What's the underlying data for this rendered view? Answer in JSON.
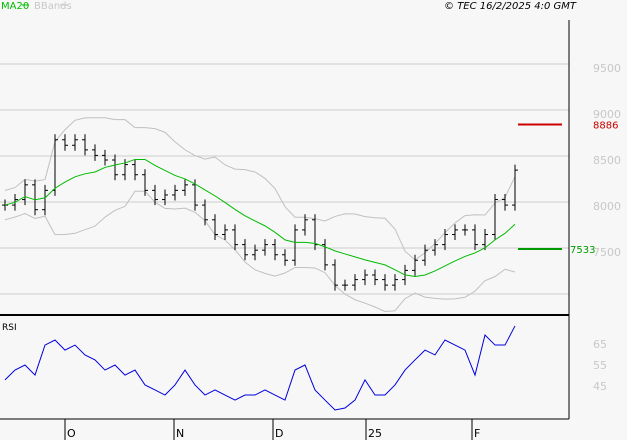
{
  "header": {
    "legend_ma": "MA20",
    "legend_bb": "BBands",
    "copyright": "© TEC 16/2/2025 4:0 GMT"
  },
  "colors": {
    "ma": "#00bb00",
    "bb": "#c0c0c0",
    "price": "#000000",
    "rsi": "#0000dd",
    "resistance": "#cc0000",
    "support": "#009900"
  },
  "levels": {
    "resistance": {
      "value": 8886,
      "label": "8886"
    },
    "support": {
      "value": 7533,
      "label": "7533"
    }
  },
  "chart_data": [
    {
      "type": "line",
      "subtype": "ohlc",
      "ylim": [
        6800,
        10000
      ],
      "y_ticks": [
        "9500",
        "9000",
        "8500",
        "8000",
        "7500"
      ],
      "y_tick_values": [
        9500,
        9000,
        8500,
        8000,
        7500
      ],
      "x_ticks": [
        "O",
        "N",
        "D",
        "25",
        "F"
      ],
      "grid": true,
      "indicators": [
        "MA20",
        "BBands"
      ],
      "closes": [
        8010,
        8070,
        8230,
        7960,
        8170,
        8720,
        8660,
        8720,
        8610,
        8550,
        8500,
        8340,
        8450,
        8340,
        8170,
        8070,
        8120,
        8170,
        8230,
        8010,
        7850,
        7690,
        7740,
        7580,
        7470,
        7520,
        7580,
        7470,
        7410,
        7740,
        7850,
        7580,
        7360,
        7140,
        7140,
        7200,
        7250,
        7200,
        7140,
        7200,
        7300,
        7410,
        7520,
        7580,
        7690,
        7740,
        7740,
        7580,
        7690,
        8070,
        8010,
        8390
      ]
    },
    {
      "type": "line",
      "title": "RSI",
      "ylim": [
        30,
        80
      ],
      "y_ticks": [
        "65",
        "55",
        "45"
      ],
      "y_tick_values": [
        65,
        55,
        45
      ],
      "values": [
        47.9,
        52.6,
        55,
        50.2,
        64.5,
        66.9,
        62.1,
        64.5,
        59.8,
        57.4,
        52.6,
        55,
        50.2,
        52.6,
        45.5,
        43.1,
        40.7,
        45.5,
        52.6,
        45.5,
        40.7,
        43.1,
        40.7,
        38.3,
        40.7,
        40.7,
        43.1,
        40.7,
        38.3,
        52.6,
        55,
        43.1,
        38.3,
        33.6,
        34.5,
        38.3,
        47.9,
        40.7,
        40.7,
        45.5,
        52.6,
        57.4,
        62.1,
        59.8,
        66.9,
        64.5,
        62.1,
        50.2,
        69.3,
        64.5,
        64.5,
        73.6
      ]
    }
  ]
}
